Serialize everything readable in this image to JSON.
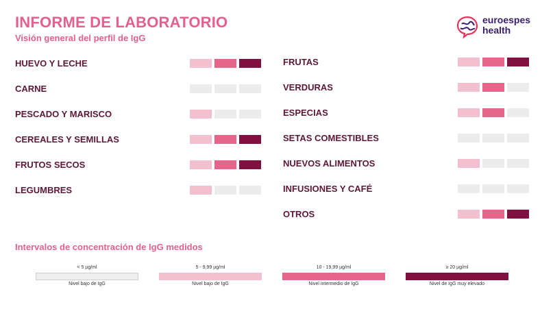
{
  "header": {
    "title": "INFORME DE LABORATORIO",
    "subtitle": "Visión general del perfil de IgG"
  },
  "logo": {
    "line1": "euroespes",
    "line2": "health"
  },
  "colors": {
    "low": "#ececec",
    "level1": "#f2c0cf",
    "level2": "#e5668a",
    "level3": "#7f1040",
    "accent": "#e5608a",
    "label": "#5d1838"
  },
  "categories_left": [
    {
      "label": "HUEVO Y LECHE",
      "level": 3
    },
    {
      "label": "CARNE",
      "level": 0
    },
    {
      "label": "PESCADO Y MARISCO",
      "level": 1
    },
    {
      "label": "CEREALES Y SEMILLAS",
      "level": 3
    },
    {
      "label": "FRUTOS SECOS",
      "level": 3
    },
    {
      "label": "LEGUMBRES",
      "level": 1
    }
  ],
  "categories_right": [
    {
      "label": "FRUTAS",
      "level": 3
    },
    {
      "label": "VERDURAS",
      "level": 2
    },
    {
      "label": "ESPECIAS",
      "level": 2
    },
    {
      "label": "SETAS COMESTIBLES",
      "level": 0
    },
    {
      "label": "NUEVOS ALIMENTOS",
      "level": 1
    },
    {
      "label": "INFUSIONES Y CAFÉ",
      "level": 0
    },
    {
      "label": "OTROS",
      "level": 3
    }
  ],
  "legend": {
    "title": "Intervalos de concentración de IgG medidos",
    "items": [
      {
        "range": "< 5 µg/ml",
        "desc": "Nivel bajo de IgG",
        "tier": "low"
      },
      {
        "range": "5 - 9,99 µg/ml",
        "desc": "Nivel bajo de IgG",
        "tier": "level1"
      },
      {
        "range": "10 - 19,99 µg/ml",
        "desc": "Nivel intermedio de IgG",
        "tier": "level2"
      },
      {
        "range": "≥ 20 µg/ml",
        "desc": "Nivel de IgG muy elevado",
        "tier": "level3"
      }
    ]
  }
}
